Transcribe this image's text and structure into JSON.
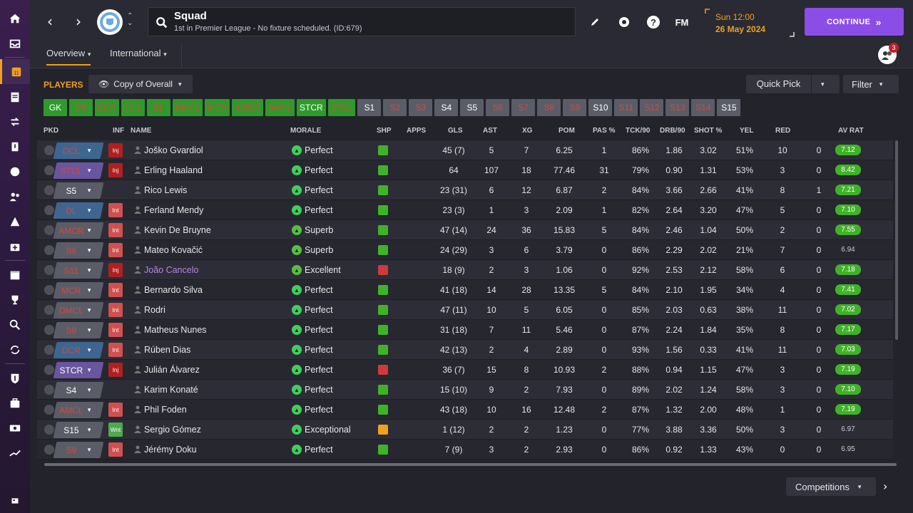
{
  "header": {
    "title": "Squad",
    "subtitle": "1st in Premier League - No fixture scheduled. (ID:679)",
    "fm_label": "FM",
    "date_line1": "Sun 12:00",
    "date_line2": "26 May 2024",
    "continue_label": "CONTINUE",
    "continue_arrows": "»"
  },
  "subnav": {
    "tabs": [
      {
        "label": "Overview"
      },
      {
        "label": "International"
      }
    ],
    "notification_count": "3"
  },
  "toolbar": {
    "players_label": "PLAYERS",
    "view_label": "Copy of Overall",
    "quick_pick_label": "Quick Pick",
    "filter_label": "Filter"
  },
  "positions": [
    "GK",
    "DR",
    "DCR",
    "DCL",
    "DL",
    "DMCL",
    "MCR",
    "AMCR",
    "AMCL",
    "STCR",
    "STCL",
    "S1",
    "S2",
    "S3",
    "S4",
    "S5",
    "S6",
    "S7",
    "S8",
    "S9",
    "S10",
    "S11",
    "S12",
    "S13",
    "S14",
    "S15"
  ],
  "columns": {
    "pkd": "PKD",
    "inf": "INF",
    "name": "NAME",
    "morale": "MORALE",
    "shp": "SHP",
    "apps": "APPS",
    "gls": "GLS",
    "ast": "AST",
    "xg": "XG",
    "pom": "POM",
    "pas": "PAS %",
    "tck": "TCK/90",
    "drb": "DRB/90",
    "shot": "SHOT %",
    "yel": "YEL",
    "red": "RED",
    "avrat": "AV RAT"
  },
  "players": [
    {
      "pos": "DCL",
      "inf": "Inj",
      "name": "Joško Gvardiol",
      "morale": "Perfect",
      "apps": "45 (7)",
      "gls": "5",
      "ast": "7",
      "xg": "6.25",
      "pom": "1",
      "pas": "86%",
      "tck": "1.86",
      "drb": "3.02",
      "shot": "51%",
      "yel": "10",
      "red": "0",
      "rat": "7.12"
    },
    {
      "pos": "STCL",
      "inf": "Inj",
      "name": "Erling Haaland",
      "morale": "Perfect",
      "apps": "64",
      "gls": "107",
      "ast": "18",
      "xg": "77.46",
      "pom": "31",
      "pas": "79%",
      "tck": "0.90",
      "drb": "1.31",
      "shot": "53%",
      "yel": "3",
      "red": "0",
      "rat": "8.42"
    },
    {
      "pos": "S5",
      "inf": "",
      "name": "Rico Lewis",
      "morale": "Perfect",
      "apps": "23 (31)",
      "gls": "6",
      "ast": "12",
      "xg": "6.87",
      "pom": "2",
      "pas": "84%",
      "tck": "3.66",
      "drb": "2.66",
      "shot": "41%",
      "yel": "8",
      "red": "1",
      "rat": "7.21"
    },
    {
      "pos": "DL",
      "inf": "Int",
      "name": "Ferland Mendy",
      "morale": "Perfect",
      "apps": "23 (3)",
      "gls": "1",
      "ast": "3",
      "xg": "2.09",
      "pom": "1",
      "pas": "82%",
      "tck": "2.64",
      "drb": "3.20",
      "shot": "47%",
      "yel": "5",
      "red": "0",
      "rat": "7.10"
    },
    {
      "pos": "AMCR",
      "inf": "Int",
      "name": "Kevin De Bruyne",
      "morale": "Superb",
      "apps": "47 (14)",
      "gls": "24",
      "ast": "36",
      "xg": "15.83",
      "pom": "5",
      "pas": "84%",
      "tck": "2.46",
      "drb": "1.04",
      "shot": "50%",
      "yel": "2",
      "red": "0",
      "rat": "7.55"
    },
    {
      "pos": "S6",
      "inf": "Int",
      "name": "Mateo Kovačić",
      "morale": "Superb",
      "apps": "24 (29)",
      "gls": "3",
      "ast": "6",
      "xg": "3.79",
      "pom": "0",
      "pas": "86%",
      "tck": "2.29",
      "drb": "2.02",
      "shot": "21%",
      "yel": "7",
      "red": "0",
      "rat": "6.94"
    },
    {
      "pos": "S11",
      "inf": "Inj",
      "name": "João Cancelo",
      "morale": "Excellent",
      "apps": "18 (9)",
      "gls": "2",
      "ast": "3",
      "xg": "1.06",
      "pom": "0",
      "pas": "92%",
      "tck": "2.53",
      "drb": "2.12",
      "shot": "58%",
      "yel": "6",
      "red": "0",
      "rat": "7.18"
    },
    {
      "pos": "MCR",
      "inf": "Int",
      "name": "Bernardo Silva",
      "morale": "Perfect",
      "apps": "41 (18)",
      "gls": "14",
      "ast": "28",
      "xg": "13.35",
      "pom": "5",
      "pas": "84%",
      "tck": "2.10",
      "drb": "1.95",
      "shot": "34%",
      "yel": "4",
      "red": "0",
      "rat": "7.41"
    },
    {
      "pos": "DMCL",
      "inf": "Int",
      "name": "Rodri",
      "morale": "Perfect",
      "apps": "47 (11)",
      "gls": "10",
      "ast": "5",
      "xg": "6.05",
      "pom": "0",
      "pas": "85%",
      "tck": "2.03",
      "drb": "0.63",
      "shot": "38%",
      "yel": "11",
      "red": "0",
      "rat": "7.02"
    },
    {
      "pos": "S8",
      "inf": "Int",
      "name": "Matheus Nunes",
      "morale": "Perfect",
      "apps": "31 (18)",
      "gls": "7",
      "ast": "11",
      "xg": "5.46",
      "pom": "0",
      "pas": "87%",
      "tck": "2.24",
      "drb": "1.84",
      "shot": "35%",
      "yel": "8",
      "red": "0",
      "rat": "7.17"
    },
    {
      "pos": "DCR",
      "inf": "Int",
      "name": "Rúben Dias",
      "morale": "Perfect",
      "apps": "42 (13)",
      "gls": "2",
      "ast": "4",
      "xg": "2.89",
      "pom": "0",
      "pas": "93%",
      "tck": "1.56",
      "drb": "0.33",
      "shot": "41%",
      "yel": "11",
      "red": "0",
      "rat": "7.03"
    },
    {
      "pos": "STCR",
      "inf": "Inj",
      "name": "Julián Álvarez",
      "morale": "Perfect",
      "apps": "36 (7)",
      "gls": "15",
      "ast": "8",
      "xg": "10.93",
      "pom": "2",
      "pas": "88%",
      "tck": "0.94",
      "drb": "1.15",
      "shot": "47%",
      "yel": "3",
      "red": "0",
      "rat": "7.19"
    },
    {
      "pos": "S4",
      "inf": "",
      "name": "Karim Konaté",
      "morale": "Perfect",
      "apps": "15 (10)",
      "gls": "9",
      "ast": "2",
      "xg": "7.93",
      "pom": "0",
      "pas": "89%",
      "tck": "2.02",
      "drb": "1.24",
      "shot": "58%",
      "yel": "3",
      "red": "0",
      "rat": "7.10"
    },
    {
      "pos": "AMCL",
      "inf": "Int",
      "name": "Phil Foden",
      "morale": "Perfect",
      "apps": "43 (18)",
      "gls": "10",
      "ast": "16",
      "xg": "12.48",
      "pom": "2",
      "pas": "87%",
      "tck": "1.32",
      "drb": "2.00",
      "shot": "48%",
      "yel": "1",
      "red": "0",
      "rat": "7.19"
    },
    {
      "pos": "S15",
      "inf": "Wnt",
      "name": "Sergio Gómez",
      "morale": "Exceptional",
      "apps": "1 (12)",
      "gls": "2",
      "ast": "2",
      "xg": "1.23",
      "pom": "0",
      "pas": "77%",
      "tck": "3.88",
      "drb": "3.36",
      "shot": "50%",
      "yel": "3",
      "red": "0",
      "rat": "6.97"
    },
    {
      "pos": "S9",
      "inf": "Int",
      "name": "Jérémy Doku",
      "morale": "Perfect",
      "apps": "7 (9)",
      "gls": "3",
      "ast": "2",
      "xg": "2.93",
      "pom": "0",
      "pas": "86%",
      "tck": "0.92",
      "drb": "1.33",
      "shot": "43%",
      "yel": "0",
      "red": "0",
      "rat": "6.95"
    }
  ],
  "footer": {
    "competitions_label": "Competitions"
  }
}
